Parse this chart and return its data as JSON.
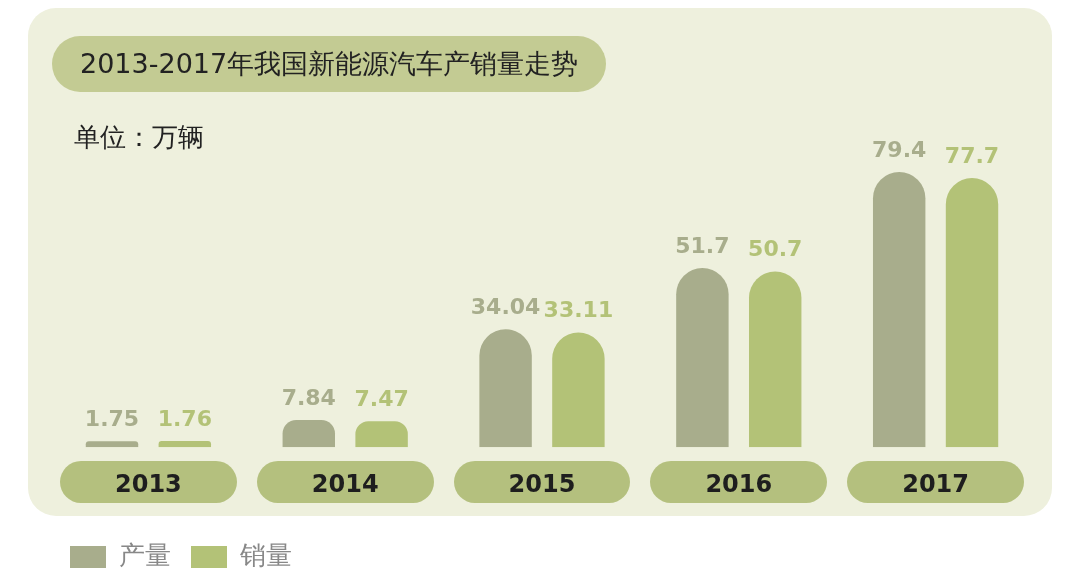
{
  "chart_data": {
    "type": "bar",
    "title": "2013-2017年我国新能源汽车产销量走势",
    "subtitle": "单位：万辆",
    "categories": [
      "2013",
      "2014",
      "2015",
      "2016",
      "2017"
    ],
    "series": [
      {
        "name": "产量",
        "color": "#a8ad8c",
        "values": [
          1.75,
          7.84,
          34.04,
          51.7,
          79.4
        ]
      },
      {
        "name": "销量",
        "color": "#b3c277",
        "values": [
          1.76,
          7.47,
          33.11,
          50.7,
          77.7
        ]
      }
    ],
    "data_labels": true,
    "legend": "bottom left",
    "grid": false
  }
}
